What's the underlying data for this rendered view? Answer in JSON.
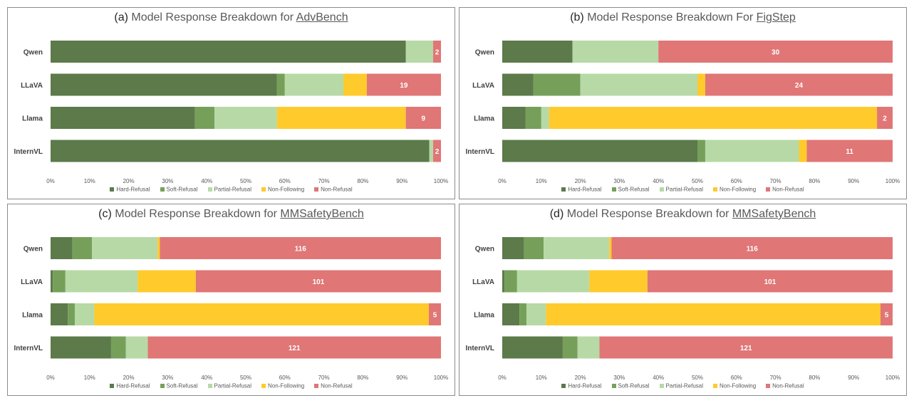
{
  "colors": {
    "Hard-Refusal": "#5c7a4a",
    "Soft-Refusal": "#76a05a",
    "Partial-Refusal": "#b7d9a6",
    "Non-Following": "#ffca2c",
    "Non-Refusal": "#e07676"
  },
  "legend": [
    "Hard-Refusal",
    "Soft-Refusal",
    "Partial-Refusal",
    "Non-Following",
    "Non-Refusal"
  ],
  "x_ticks": [
    "0%",
    "10%",
    "20%",
    "30%",
    "40%",
    "50%",
    "60%",
    "70%",
    "80%",
    "90%",
    "100%"
  ],
  "chart_data": [
    {
      "type": "bar",
      "orientation": "horizontal-stacked-percent",
      "letter": "(a)",
      "title_prefix": "Model Response Breakdown for",
      "benchmark": "AdvBench",
      "categories": [
        "Qwen",
        "LLaVA",
        "Llama",
        "InternVL"
      ],
      "xlim": [
        0,
        100
      ],
      "series": [
        {
          "name": "Hard-Refusal",
          "values": [
            91,
            58,
            37,
            97
          ]
        },
        {
          "name": "Soft-Refusal",
          "values": [
            0,
            2,
            5,
            0
          ]
        },
        {
          "name": "Partial-Refusal",
          "values": [
            7,
            15,
            16,
            1
          ]
        },
        {
          "name": "Non-Following",
          "values": [
            0,
            6,
            33,
            0
          ]
        },
        {
          "name": "Non-Refusal",
          "values": [
            2,
            19,
            9,
            2
          ]
        }
      ],
      "data_labels": [
        "2",
        "19",
        "9",
        "2"
      ]
    },
    {
      "type": "bar",
      "orientation": "horizontal-stacked-percent",
      "letter": "(b)",
      "title_prefix": "Model Response Breakdown For",
      "benchmark": "FigStep",
      "categories": [
        "Qwen",
        "LLaVA",
        "Llama",
        "InternVL"
      ],
      "xlim": [
        0,
        100
      ],
      "series": [
        {
          "name": "Hard-Refusal",
          "values": [
            18,
            8,
            6,
            50
          ]
        },
        {
          "name": "Soft-Refusal",
          "values": [
            0,
            12,
            4,
            2
          ]
        },
        {
          "name": "Partial-Refusal",
          "values": [
            22,
            30,
            2,
            24
          ]
        },
        {
          "name": "Non-Following",
          "values": [
            0,
            2,
            84,
            2
          ]
        },
        {
          "name": "Non-Refusal",
          "values": [
            60,
            48,
            4,
            22
          ]
        }
      ],
      "data_labels": [
        "30",
        "24",
        "2",
        "11"
      ]
    },
    {
      "type": "bar",
      "orientation": "horizontal-stacked-percent",
      "letter": "(c)",
      "title_prefix": "Model Response Breakdown for",
      "benchmark": "MMSafetyBench",
      "categories": [
        "Qwen",
        "LLaVA",
        "Llama",
        "InternVL"
      ],
      "xlim": [
        0,
        100
      ],
      "series": [
        {
          "name": "Hard-Refusal",
          "values": [
            5.6,
            0.6,
            4.4,
            15.5
          ]
        },
        {
          "name": "Soft-Refusal",
          "values": [
            5,
            3.2,
            1.8,
            3.8
          ]
        },
        {
          "name": "Partial-Refusal",
          "values": [
            16.8,
            18.5,
            5,
            5.6
          ]
        },
        {
          "name": "Non-Following",
          "values": [
            0.6,
            14.9,
            85.7,
            0
          ]
        },
        {
          "name": "Non-Refusal",
          "values": [
            72,
            62.8,
            3.1,
            75.1
          ]
        }
      ],
      "data_labels": [
        "116",
        "101",
        "5",
        "121"
      ]
    },
    {
      "type": "bar",
      "orientation": "horizontal-stacked-percent",
      "letter": "(d)",
      "title_prefix": "Model Response Breakdown for",
      "benchmark": "MMSafetyBench",
      "categories": [
        "Qwen",
        "LLaVA",
        "Llama",
        "InternVL"
      ],
      "xlim": [
        0,
        100
      ],
      "series": [
        {
          "name": "Hard-Refusal",
          "values": [
            5.6,
            0.6,
            4.4,
            15.5
          ]
        },
        {
          "name": "Soft-Refusal",
          "values": [
            5,
            3.2,
            1.8,
            3.8
          ]
        },
        {
          "name": "Partial-Refusal",
          "values": [
            16.8,
            18.5,
            5,
            5.6
          ]
        },
        {
          "name": "Non-Following",
          "values": [
            0.6,
            14.9,
            85.7,
            0
          ]
        },
        {
          "name": "Non-Refusal",
          "values": [
            72,
            62.8,
            3.1,
            75.1
          ]
        }
      ],
      "data_labels": [
        "116",
        "101",
        "5",
        "121"
      ]
    }
  ]
}
